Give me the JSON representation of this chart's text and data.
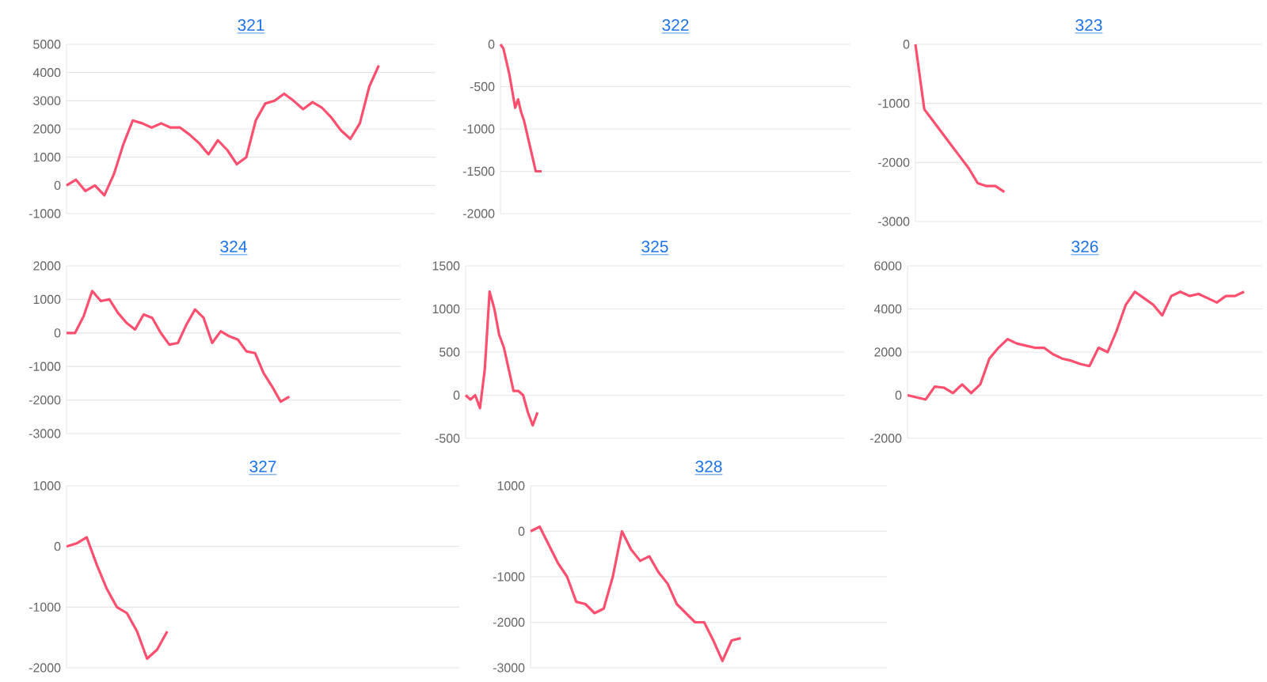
{
  "chart_data": [
    {
      "type": "line",
      "title": "321",
      "color": "#ff4f6e",
      "grid": "y",
      "ylim": [
        -1000,
        5000
      ],
      "yticks": [
        -1000,
        0,
        1000,
        2000,
        3000,
        4000,
        5000
      ],
      "categories": [
        null,
        null,
        null,
        null,
        null,
        null,
        null,
        null,
        null,
        null,
        null,
        null,
        null,
        null,
        null,
        null,
        null,
        null,
        null,
        null,
        null,
        null,
        null,
        null,
        null,
        null,
        null,
        null,
        null,
        null,
        null,
        null,
        null,
        null,
        null,
        null,
        null,
        null,
        null,
        null
      ],
      "values": [
        0,
        200,
        -200,
        0,
        -350,
        390,
        1450,
        2300,
        2200,
        2050,
        2200,
        2050,
        2050,
        1800,
        1500,
        1100,
        1600,
        1250,
        750,
        1000,
        2300,
        2900,
        3000,
        3250,
        3000,
        2700,
        2950,
        2750,
        2400,
        1950,
        1650,
        2200,
        3500,
        4250,
        null,
        null,
        null,
        null,
        null,
        null
      ]
    },
    {
      "type": "line",
      "title": "322",
      "color": "#ff4f6e",
      "grid": "y",
      "ylim": [
        -2000,
        0
      ],
      "yticks": [
        -2000,
        -1500,
        -1000,
        -500,
        0
      ],
      "categories": [
        null,
        null,
        null,
        null,
        null,
        null,
        null,
        null,
        null,
        null,
        null,
        null,
        null,
        null,
        null,
        null,
        null,
        null,
        null,
        null,
        null,
        null,
        null,
        null,
        null,
        null,
        null,
        null,
        null,
        null,
        null,
        null,
        null,
        null,
        null,
        null,
        null,
        null,
        null,
        null,
        null,
        null,
        null,
        null,
        null,
        null,
        null,
        null,
        null,
        null,
        null,
        null,
        null,
        null,
        null,
        null,
        null,
        null,
        null,
        null,
        null,
        null,
        null,
        null,
        null,
        null,
        null,
        null,
        null,
        null,
        null,
        null,
        null,
        null,
        null,
        null,
        null,
        null,
        null,
        null,
        null,
        null,
        null,
        null,
        null,
        null,
        null,
        null,
        null,
        null,
        null,
        null,
        null,
        null,
        null,
        null,
        null,
        null,
        null,
        null,
        null,
        null,
        null,
        null,
        null,
        null,
        null,
        null,
        null,
        null,
        null,
        null,
        null,
        null,
        null,
        null,
        null,
        null,
        null,
        null
      ],
      "values": [
        0,
        -50,
        -200,
        -350,
        -550,
        -750,
        -650,
        -800,
        -900,
        -1050,
        -1200,
        -1350,
        -1500,
        -1500,
        -1500,
        null,
        null,
        null,
        null,
        null,
        null,
        null,
        null,
        null,
        null,
        null,
        null,
        null,
        null,
        null,
        null,
        null,
        null,
        null,
        null,
        null,
        null,
        null,
        null,
        null,
        null,
        null,
        null,
        null,
        null,
        null,
        null,
        null,
        null,
        null,
        null,
        null,
        null,
        null,
        null,
        null,
        null,
        null,
        null,
        null,
        null,
        null,
        null,
        null,
        null,
        null,
        null,
        null,
        null,
        null,
        null,
        null,
        null,
        null,
        null,
        null,
        null,
        null,
        null,
        null,
        null,
        null,
        null,
        null,
        null,
        null,
        null,
        null,
        null,
        null,
        null,
        null,
        null,
        null,
        null,
        null,
        null,
        null,
        null,
        null,
        null,
        null,
        null,
        null,
        null,
        null,
        null,
        null,
        null,
        null,
        null,
        null,
        null,
        null,
        null,
        null,
        null,
        null,
        null,
        null
      ]
    },
    {
      "type": "line",
      "title": "323",
      "color": "#ff4f6e",
      "grid": "y",
      "ylim": [
        -3000,
        0
      ],
      "yticks": [
        -3000,
        -2000,
        -1000,
        0
      ],
      "categories": [
        null,
        null,
        null,
        null,
        null,
        null,
        null,
        null,
        null,
        null,
        null,
        null,
        null,
        null,
        null,
        null,
        null,
        null,
        null,
        null,
        null,
        null,
        null,
        null,
        null,
        null,
        null,
        null,
        null,
        null,
        null,
        null,
        null,
        null,
        null,
        null,
        null,
        null,
        null,
        null
      ],
      "values": [
        0,
        -1100,
        -1300,
        -1500,
        -1700,
        -1900,
        -2100,
        -2350,
        -2400,
        -2400,
        -2500,
        null,
        null,
        null,
        null,
        null,
        null,
        null,
        null,
        null,
        null,
        null,
        null,
        null,
        null,
        null,
        null,
        null,
        null,
        null,
        null,
        null,
        null,
        null,
        null,
        null,
        null,
        null,
        null,
        null
      ]
    },
    {
      "type": "line",
      "title": "324",
      "color": "#ff4f6e",
      "grid": "y",
      "ylim": [
        -3000,
        2000
      ],
      "yticks": [
        -3000,
        -2000,
        -1000,
        0,
        1000,
        2000
      ],
      "categories": [
        null,
        null,
        null,
        null,
        null,
        null,
        null,
        null,
        null,
        null,
        null,
        null,
        null,
        null,
        null,
        null,
        null,
        null,
        null,
        null,
        null,
        null,
        null,
        null,
        null,
        null,
        null,
        null,
        null,
        null,
        null,
        null,
        null,
        null,
        null,
        null,
        null,
        null,
        null,
        null
      ],
      "values": [
        0,
        0,
        500,
        1250,
        950,
        1000,
        600,
        300,
        100,
        550,
        450,
        0,
        -350,
        -300,
        250,
        700,
        450,
        -300,
        50,
        -100,
        -200,
        -550,
        -600,
        -1200,
        -1600,
        -2050,
        -1900,
        null,
        null,
        null,
        null,
        null,
        null,
        null,
        null,
        null,
        null,
        null,
        null,
        null
      ]
    },
    {
      "type": "line",
      "title": "325",
      "color": "#ff4f6e",
      "grid": "y",
      "ylim": [
        -500,
        1500
      ],
      "yticks": [
        -500,
        0,
        500,
        1000,
        1500
      ],
      "categories": [
        null,
        null,
        null,
        null,
        null,
        null,
        null,
        null,
        null,
        null,
        null,
        null,
        null,
        null,
        null,
        null,
        null,
        null,
        null,
        null,
        null,
        null,
        null,
        null,
        null,
        null,
        null,
        null,
        null,
        null,
        null,
        null,
        null,
        null,
        null,
        null,
        null,
        null,
        null,
        null,
        null,
        null,
        null,
        null,
        null,
        null,
        null,
        null,
        null,
        null,
        null,
        null,
        null,
        null,
        null,
        null,
        null,
        null,
        null,
        null,
        null,
        null,
        null,
        null,
        null,
        null,
        null,
        null,
        null,
        null,
        null,
        null,
        null,
        null,
        null,
        null,
        null,
        null,
        null,
        null
      ],
      "values": [
        0,
        -50,
        0,
        -150,
        300,
        1200,
        1000,
        700,
        550,
        300,
        50,
        50,
        0,
        -200,
        -350,
        -200,
        null,
        null,
        null,
        null,
        null,
        null,
        null,
        null,
        null,
        null,
        null,
        null,
        null,
        null,
        null,
        null,
        null,
        null,
        null,
        null,
        null,
        null,
        null,
        null,
        null,
        null,
        null,
        null,
        null,
        null,
        null,
        null,
        null,
        null,
        null,
        null,
        null,
        null,
        null,
        null,
        null,
        null,
        null,
        null,
        null,
        null,
        null,
        null,
        null,
        null,
        null,
        null,
        null,
        null,
        null,
        null,
        null,
        null,
        null,
        null,
        null,
        null,
        null,
        null
      ]
    },
    {
      "type": "line",
      "title": "326",
      "color": "#ff4f6e",
      "grid": "y",
      "ylim": [
        -2000,
        6000
      ],
      "yticks": [
        -2000,
        0,
        2000,
        4000,
        6000
      ],
      "categories": [
        null,
        null,
        null,
        null,
        null,
        null,
        null,
        null,
        null,
        null,
        null,
        null,
        null,
        null,
        null,
        null,
        null,
        null,
        null,
        null,
        null,
        null,
        null,
        null,
        null,
        null,
        null,
        null,
        null,
        null,
        null,
        null,
        null,
        null,
        null,
        null,
        null,
        null,
        null,
        null
      ],
      "values": [
        0,
        -100,
        -200,
        400,
        350,
        100,
        500,
        100,
        500,
        1700,
        2200,
        2600,
        2400,
        2300,
        2200,
        2200,
        1900,
        1700,
        1600,
        1450,
        1350,
        2200,
        2000,
        3000,
        4200,
        4800,
        4500,
        4200,
        3700,
        4600,
        4800,
        4600,
        4700,
        4500,
        4300,
        4600,
        4600,
        4800,
        null,
        null
      ]
    },
    {
      "type": "line",
      "title": "327",
      "color": "#ff4f6e",
      "grid": "y",
      "ylim": [
        -2000,
        1000
      ],
      "yticks": [
        -2000,
        -1000,
        0,
        1000
      ],
      "categories": [
        null,
        null,
        null,
        null,
        null,
        null,
        null,
        null,
        null,
        null,
        null,
        null,
        null,
        null,
        null,
        null,
        null,
        null,
        null,
        null,
        null,
        null,
        null,
        null,
        null,
        null,
        null,
        null,
        null,
        null,
        null,
        null,
        null,
        null,
        null,
        null,
        null,
        null,
        null,
        null
      ],
      "values": [
        0,
        50,
        150,
        -300,
        -700,
        -1000,
        -1100,
        -1400,
        -1850,
        -1700,
        -1400,
        null,
        null,
        null,
        null,
        null,
        null,
        null,
        null,
        null,
        null,
        null,
        null,
        null,
        null,
        null,
        null,
        null,
        null,
        null,
        null,
        null,
        null,
        null,
        null,
        null,
        null,
        null,
        null,
        null
      ]
    },
    {
      "type": "line",
      "title": "328",
      "color": "#ff4f6e",
      "grid": "y",
      "ylim": [
        -3000,
        1000
      ],
      "yticks": [
        -3000,
        -2000,
        -1000,
        0,
        1000
      ],
      "categories": [
        null,
        null,
        null,
        null,
        null,
        null,
        null,
        null,
        null,
        null,
        null,
        null,
        null,
        null,
        null,
        null,
        null,
        null,
        null,
        null,
        null,
        null,
        null,
        null,
        null,
        null,
        null,
        null,
        null,
        null,
        null,
        null,
        null,
        null,
        null,
        null,
        null,
        null,
        null,
        null
      ],
      "values": [
        0,
        100,
        -300,
        -700,
        -1000,
        -1550,
        -1600,
        -1800,
        -1700,
        -1000,
        0,
        -400,
        -650,
        -550,
        -900,
        -1150,
        -1600,
        -1800,
        -2000,
        -2000,
        -2400,
        -2850,
        -2400,
        -2350,
        null,
        null,
        null,
        null,
        null,
        null,
        null,
        null,
        null,
        null,
        null,
        null,
        null,
        null,
        null,
        null
      ]
    }
  ]
}
